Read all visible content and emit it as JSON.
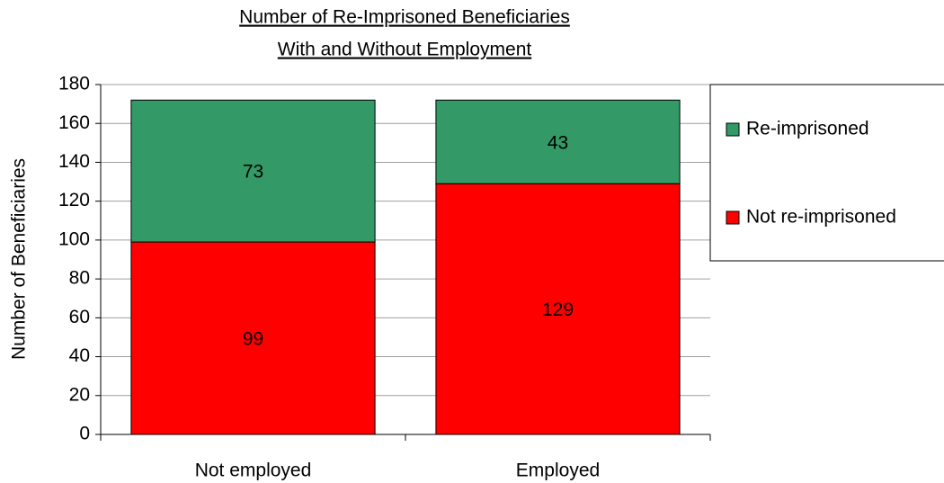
{
  "chart_data": {
    "type": "stacked-bar",
    "title": [
      "Number of Re-Imprisoned Beneficiaries",
      "With and Without Employment"
    ],
    "y_label": "Number of Beneficiaries",
    "categories": [
      "Not employed",
      "Employed"
    ],
    "series": [
      {
        "name": "Not re-imprisoned",
        "color": "#ff0000",
        "values": [
          99,
          129
        ]
      },
      {
        "name": "Re-imprisoned",
        "color": "#339966",
        "values": [
          73,
          43
        ]
      }
    ],
    "ylim": [
      0,
      180
    ],
    "yticks": [
      0,
      20,
      40,
      60,
      80,
      100,
      120,
      140,
      160,
      180
    ],
    "grid": true
  }
}
